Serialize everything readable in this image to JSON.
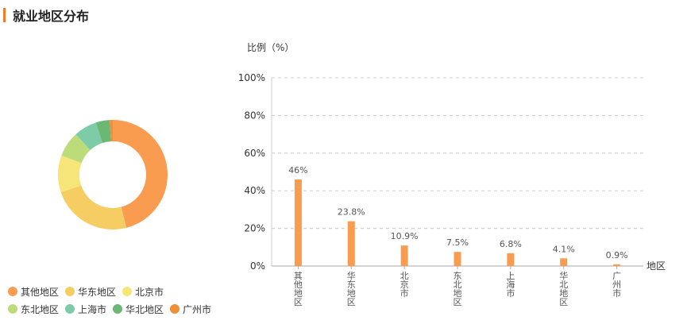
{
  "header": {
    "title": "就业地区分布"
  },
  "chart_data": [
    {
      "type": "pie",
      "variant": "donut",
      "legend_position": "bottom-left",
      "categories": [
        "其他地区",
        "华东地区",
        "北京市",
        "东北地区",
        "上海市",
        "华北地区",
        "广州市"
      ],
      "values": [
        46,
        23.8,
        10.9,
        7.5,
        6.8,
        4.1,
        0.9
      ],
      "colors": [
        "#f99c50",
        "#f5cd63",
        "#f6e67a",
        "#bcdc7a",
        "#7ecba7",
        "#6bb874",
        "#f08e3a"
      ]
    },
    {
      "type": "bar",
      "ylabel": "比例（%）",
      "xlabel": "地区",
      "categories": [
        "其他地区",
        "华东地区",
        "北京市",
        "东北地区",
        "上海市",
        "华北地区",
        "广州市"
      ],
      "values": [
        46,
        23.8,
        10.9,
        7.5,
        6.8,
        4.1,
        0.9
      ],
      "value_labels": [
        "46%",
        "23.8%",
        "10.9%",
        "7.5%",
        "6.8%",
        "4.1%",
        "0.9%"
      ],
      "ylim": [
        0,
        100
      ],
      "yticks": [
        0,
        20,
        40,
        60,
        80,
        100
      ],
      "ytick_labels": [
        "0%",
        "20%",
        "40%",
        "60%",
        "80%",
        "100%"
      ],
      "grid": true,
      "bar_color": "#f99c50"
    }
  ]
}
